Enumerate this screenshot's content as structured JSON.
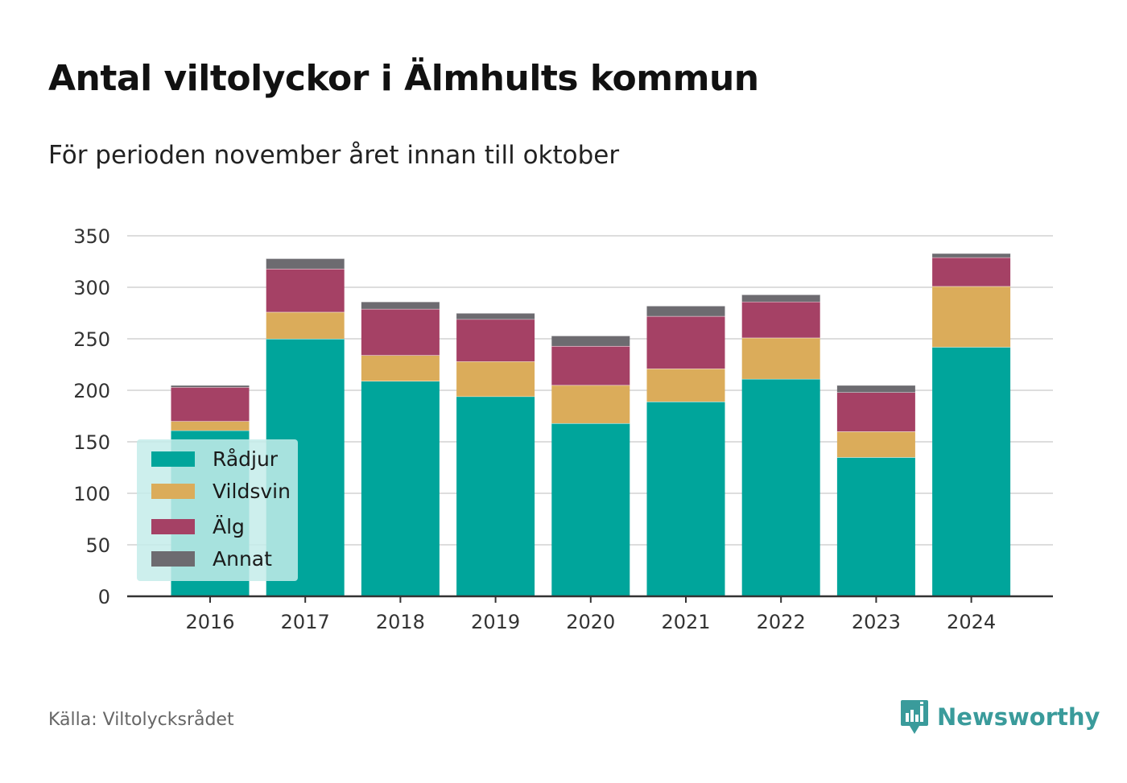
{
  "title": "Antal viltolyckor i Älmhults kommun",
  "subtitle": "För perioden november året innan till oktober",
  "source": "Källa: Viltolycksrådet",
  "brand": {
    "name": "Newsworthy",
    "icon": "newsworthy-logo-icon",
    "color": "#3a9b9b"
  },
  "chart_data": {
    "type": "bar",
    "stacked": true,
    "title": "Antal viltolyckor i Älmhults kommun",
    "subtitle": "För perioden november året innan till oktober",
    "categories": [
      "2016",
      "2017",
      "2018",
      "2019",
      "2020",
      "2021",
      "2022",
      "2023",
      "2024"
    ],
    "series": [
      {
        "name": "Rådjur",
        "color": "#00a59b",
        "values": [
          161,
          250,
          209,
          194,
          168,
          189,
          211,
          135,
          242
        ]
      },
      {
        "name": "Vildsvin",
        "color": "#dbac5a",
        "values": [
          9,
          26,
          25,
          34,
          37,
          32,
          40,
          25,
          59
        ]
      },
      {
        "name": "Älg",
        "color": "#a54165",
        "values": [
          33,
          42,
          45,
          41,
          38,
          51,
          35,
          38,
          28
        ]
      },
      {
        "name": "Annat",
        "color": "#6d6b70",
        "values": [
          2,
          10,
          7,
          6,
          10,
          10,
          7,
          7,
          4
        ]
      }
    ],
    "ylim": [
      0,
      350
    ],
    "yticks": [
      0,
      50,
      100,
      150,
      200,
      250,
      300,
      350
    ],
    "grid": true,
    "legend_position": "bottom-left"
  }
}
